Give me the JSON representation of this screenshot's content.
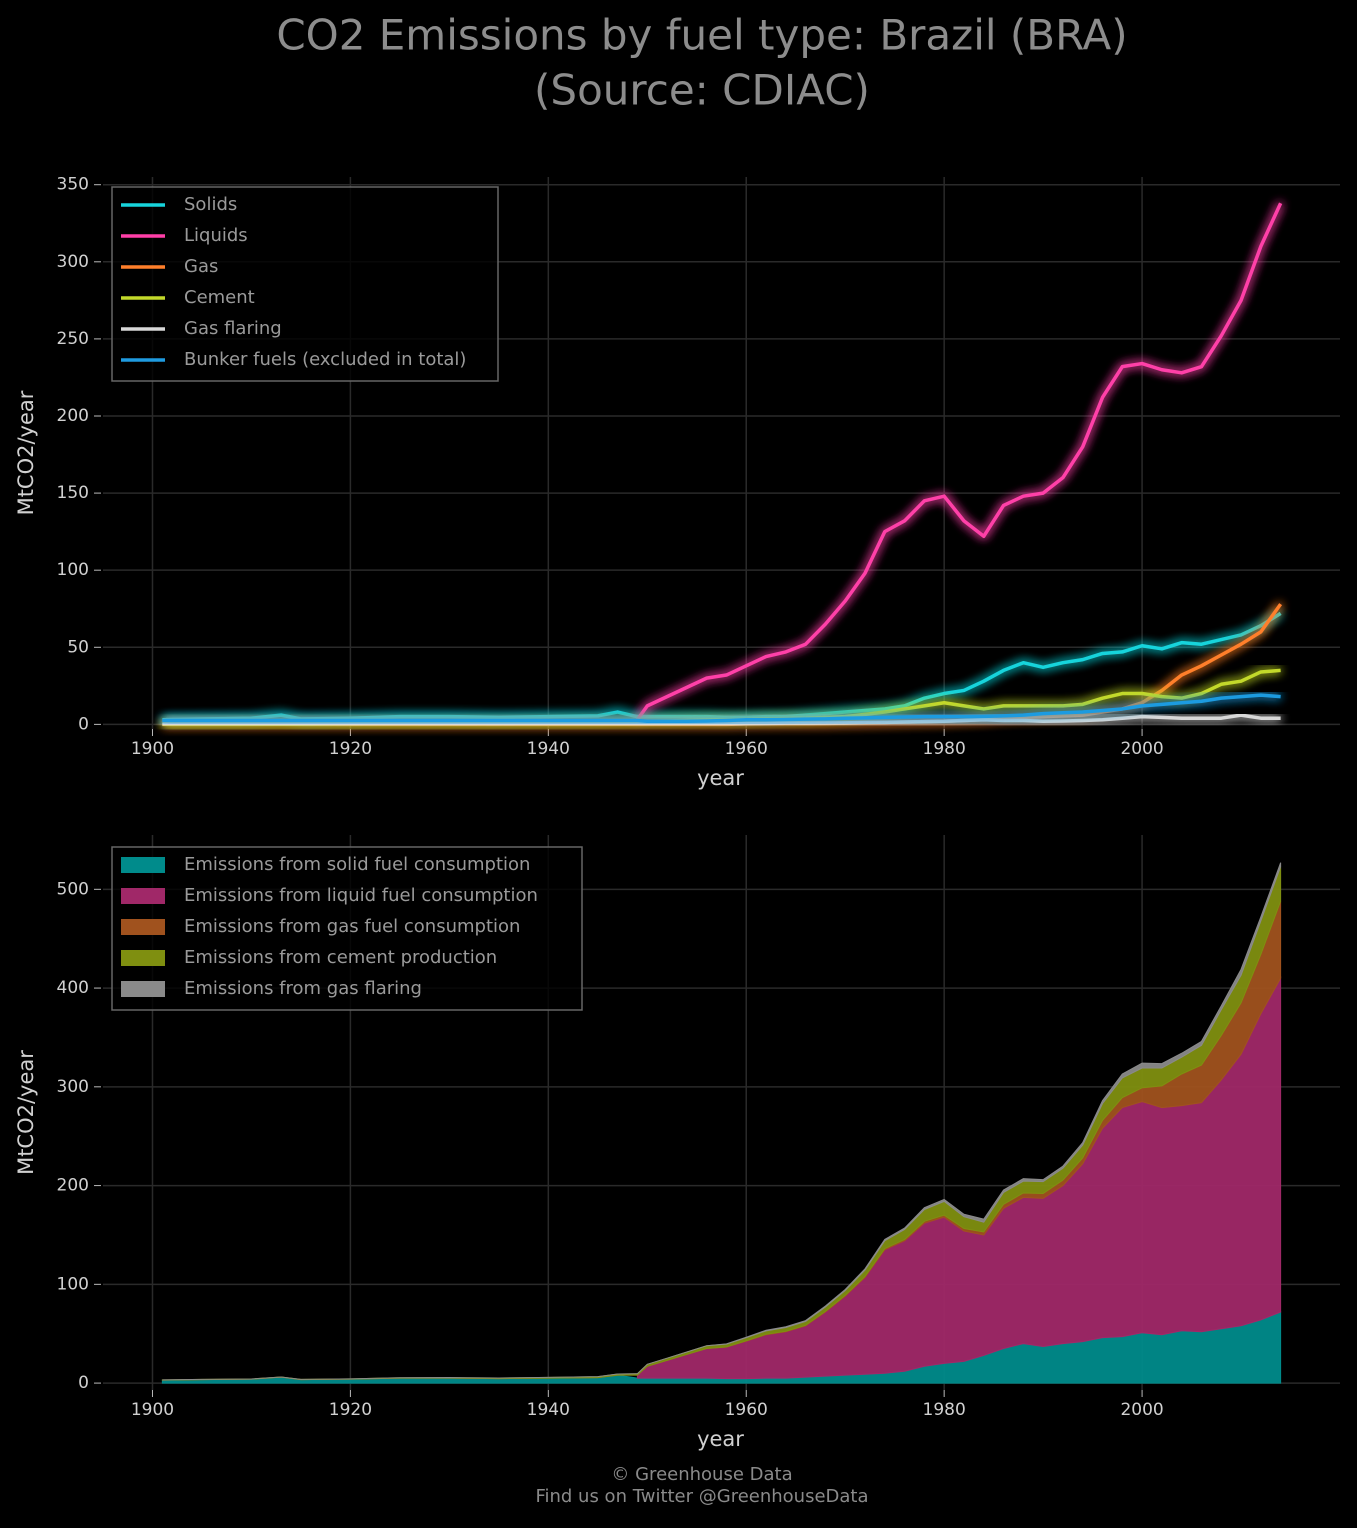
{
  "title": [
    "CO2 Emissions by fuel type: Brazil (BRA)",
    "(Source: CDIAC)"
  ],
  "footer": [
    "© Greenhouse Data",
    "Find us on Twitter @GreenhouseData"
  ],
  "chart_data": [
    {
      "type": "line",
      "xlabel": "year",
      "ylabel": "MtCO2/year",
      "grid": true,
      "legend": "upper-left",
      "xlim": [
        1895,
        2020
      ],
      "ylim": [
        -3,
        355
      ],
      "xticks": [
        1900,
        1920,
        1940,
        1960,
        1980,
        2000
      ],
      "yticks": [
        0,
        50,
        100,
        150,
        200,
        250,
        300,
        350
      ],
      "x": [
        1901,
        1905,
        1910,
        1913,
        1915,
        1920,
        1925,
        1930,
        1935,
        1940,
        1945,
        1947,
        1949,
        1950,
        1952,
        1954,
        1956,
        1958,
        1960,
        1962,
        1964,
        1966,
        1968,
        1970,
        1972,
        1974,
        1976,
        1978,
        1980,
        1982,
        1984,
        1986,
        1988,
        1990,
        1992,
        1994,
        1996,
        1998,
        2000,
        2002,
        2004,
        2006,
        2008,
        2010,
        2012,
        2014
      ],
      "series": [
        {
          "name": "Solids",
          "color": "#17d4dc",
          "values": [
            3,
            3.5,
            4,
            6,
            3.5,
            4,
            5,
            5,
            4.5,
            5,
            5.5,
            8,
            5,
            5,
            5,
            5,
            5,
            4.5,
            4.5,
            5,
            5,
            6,
            7,
            8,
            9,
            10,
            12,
            17,
            20,
            22,
            28,
            35,
            40,
            37,
            40,
            42,
            46,
            47,
            51,
            49,
            53,
            52,
            55,
            58,
            64,
            72
          ]
        },
        {
          "name": "Liquids",
          "color": "#ff3fa8",
          "values": [
            null,
            null,
            null,
            null,
            null,
            null,
            null,
            null,
            null,
            null,
            null,
            null,
            3,
            12,
            18,
            24,
            30,
            32,
            38,
            44,
            47,
            52,
            65,
            80,
            98,
            125,
            132,
            145,
            148,
            132,
            122,
            142,
            148,
            150,
            160,
            180,
            212,
            232,
            234,
            230,
            228,
            232,
            252,
            275,
            310,
            338
          ]
        },
        {
          "name": "Gas",
          "color": "#ff7f2a",
          "values": [
            0,
            0,
            0,
            0,
            0,
            0,
            0,
            0,
            0,
            0,
            0,
            0,
            0,
            0,
            0,
            0,
            0,
            0,
            0.3,
            0.4,
            0.5,
            0.5,
            0.6,
            0.8,
            1,
            1.2,
            1.5,
            1.8,
            2,
            2.5,
            3,
            4,
            4.5,
            5,
            5.5,
            6,
            8,
            10,
            14,
            22,
            32,
            38,
            45,
            52,
            60,
            78
          ]
        },
        {
          "name": "Cement",
          "color": "#c3d92a",
          "values": [
            0.2,
            0.2,
            0.2,
            0.2,
            0.2,
            0.3,
            0.4,
            0.5,
            0.6,
            0.8,
            1,
            1.2,
            1.5,
            2,
            2.2,
            2.5,
            2.8,
            3,
            3.2,
            3.5,
            3.8,
            4,
            4.5,
            5,
            6.5,
            8,
            10,
            12,
            14,
            12,
            10,
            12,
            12,
            12,
            12,
            13,
            17,
            20,
            20,
            18,
            17,
            20,
            26,
            28,
            34,
            35
          ]
        },
        {
          "name": "Gas flaring",
          "color": "#d8d8d8",
          "values": [
            0,
            0,
            0,
            0,
            0,
            0,
            0,
            0,
            0,
            0,
            0,
            0,
            0,
            0,
            0,
            0,
            0,
            0.2,
            0.5,
            0.6,
            0.8,
            0.8,
            0.9,
            1,
            1.2,
            1.3,
            1.5,
            1.8,
            2,
            2.5,
            3,
            2.5,
            2.5,
            2,
            2.2,
            2.5,
            3,
            4,
            5,
            4.5,
            4,
            4,
            4,
            6,
            4,
            4
          ]
        },
        {
          "name": "Bunker fuels (excluded in total)",
          "color": "#1f9be0",
          "values": [
            2.5,
            2.5,
            2.5,
            2.5,
            2.5,
            2.5,
            2.5,
            2.5,
            2.5,
            2.5,
            2.5,
            2.5,
            2.5,
            2,
            2,
            2,
            2.2,
            2.5,
            3,
            3,
            3.2,
            3.4,
            3.6,
            4,
            4.2,
            4.5,
            4.8,
            5,
            5,
            5,
            5.2,
            5.5,
            6,
            7,
            7.5,
            8,
            9,
            10,
            12,
            13,
            14,
            15,
            17,
            18,
            19,
            18
          ]
        }
      ]
    },
    {
      "type": "stacked-area",
      "xlabel": "year",
      "ylabel": "MtCO2/year",
      "grid": true,
      "legend": "upper-left",
      "xlim": [
        1895,
        2020
      ],
      "ylim": [
        -7,
        555
      ],
      "xticks": [
        1900,
        1920,
        1940,
        1960,
        1980,
        2000
      ],
      "yticks": [
        0,
        100,
        200,
        300,
        400,
        500
      ],
      "x": [
        1901,
        1905,
        1910,
        1913,
        1915,
        1920,
        1925,
        1930,
        1935,
        1940,
        1945,
        1947,
        1949,
        1950,
        1952,
        1954,
        1956,
        1958,
        1960,
        1962,
        1964,
        1966,
        1968,
        1970,
        1972,
        1974,
        1976,
        1978,
        1980,
        1982,
        1984,
        1986,
        1988,
        1990,
        1992,
        1994,
        1996,
        1998,
        2000,
        2002,
        2004,
        2006,
        2008,
        2010,
        2012,
        2014
      ],
      "series": [
        {
          "name": "Emissions from solid fuel consumption",
          "color": "#008b8b",
          "values": [
            3,
            3.5,
            4,
            6,
            3.5,
            4,
            5,
            5,
            4.5,
            5,
            5.5,
            8,
            5,
            5,
            5,
            5,
            5,
            4.5,
            4.5,
            5,
            5,
            6,
            7,
            8,
            9,
            10,
            12,
            17,
            20,
            22,
            28,
            35,
            40,
            37,
            40,
            42,
            46,
            47,
            51,
            49,
            53,
            52,
            55,
            58,
            64,
            72
          ]
        },
        {
          "name": "Emissions from liquid fuel consumption",
          "color": "#a02868",
          "values": [
            null,
            null,
            null,
            null,
            null,
            null,
            null,
            null,
            null,
            null,
            null,
            null,
            3,
            12,
            18,
            24,
            30,
            32,
            38,
            44,
            47,
            52,
            65,
            80,
            98,
            125,
            132,
            145,
            148,
            132,
            122,
            142,
            148,
            150,
            160,
            180,
            212,
            232,
            234,
            230,
            228,
            232,
            252,
            275,
            310,
            338
          ]
        },
        {
          "name": "Emissions from gas fuel consumption",
          "color": "#a0521e",
          "values": [
            0,
            0,
            0,
            0,
            0,
            0,
            0,
            0,
            0,
            0,
            0,
            0,
            0,
            0,
            0,
            0,
            0,
            0,
            0.3,
            0.4,
            0.5,
            0.5,
            0.6,
            0.8,
            1,
            1.2,
            1.5,
            1.8,
            2,
            2.5,
            3,
            4,
            4.5,
            5,
            5.5,
            6,
            8,
            10,
            14,
            22,
            32,
            38,
            45,
            52,
            60,
            78
          ]
        },
        {
          "name": "Emissions from cement production",
          "color": "#7f8f10",
          "values": [
            0.2,
            0.2,
            0.2,
            0.2,
            0.2,
            0.3,
            0.4,
            0.5,
            0.6,
            0.8,
            1,
            1.2,
            1.5,
            2,
            2.2,
            2.5,
            2.8,
            3,
            3.2,
            3.5,
            3.8,
            4,
            4.5,
            5,
            6.5,
            8,
            10,
            12,
            14,
            12,
            10,
            12,
            12,
            12,
            12,
            13,
            17,
            20,
            20,
            18,
            17,
            20,
            26,
            28,
            34,
            35
          ]
        },
        {
          "name": "Emissions from gas flaring",
          "color": "#8a8a8a",
          "values": [
            0,
            0,
            0,
            0,
            0,
            0,
            0,
            0,
            0,
            0,
            0,
            0,
            0,
            0,
            0,
            0,
            0,
            0.2,
            0.5,
            0.6,
            0.8,
            0.8,
            0.9,
            1,
            1.2,
            1.3,
            1.5,
            1.8,
            2,
            2.5,
            3,
            2.5,
            2.5,
            2,
            2.2,
            2.5,
            3,
            4,
            5,
            4.5,
            4,
            4,
            4,
            6,
            4,
            4
          ]
        }
      ]
    }
  ]
}
